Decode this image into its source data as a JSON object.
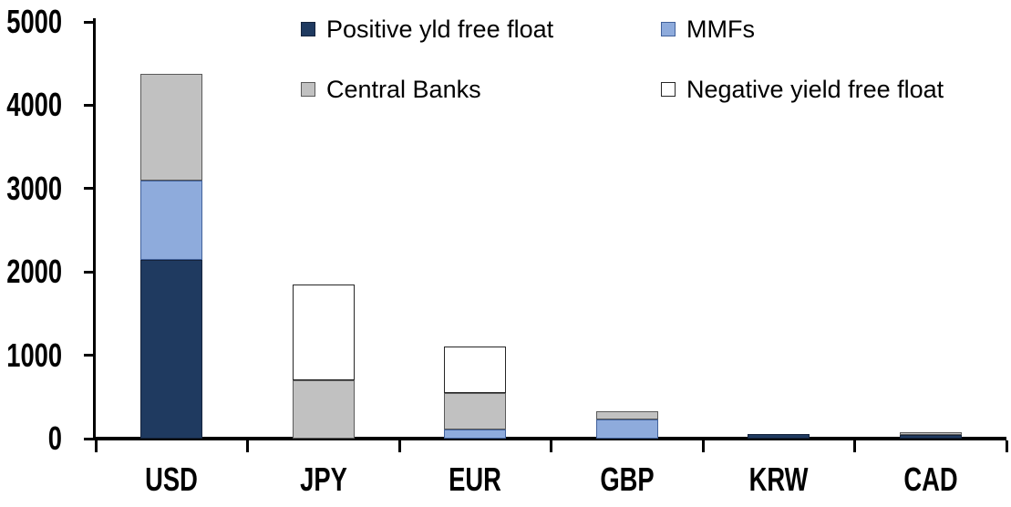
{
  "chart_data": {
    "type": "bar",
    "stacked": true,
    "title": "",
    "xlabel": "",
    "ylabel": "",
    "categories": [
      "USD",
      "JPY",
      "EUR",
      "GBP",
      "KRW",
      "CAD"
    ],
    "series": [
      {
        "name": "Positive yld free float",
        "color": "#1f3a60",
        "border": "#14233c",
        "values": [
          2150,
          0,
          0,
          0,
          50,
          40
        ]
      },
      {
        "name": "MMFs",
        "color": "#8eabdc",
        "border": "#41619b",
        "values": [
          950,
          0,
          110,
          230,
          0,
          0
        ]
      },
      {
        "name": "Central Banks",
        "color": "#c1c1c1",
        "border": "#5a5a5a",
        "values": [
          1280,
          700,
          440,
          100,
          0,
          40
        ]
      },
      {
        "name": "Negative yield free float",
        "color": "#ffffff",
        "border": "#262626",
        "values": [
          0,
          1150,
          560,
          0,
          0,
          0
        ]
      }
    ],
    "ylim": [
      0,
      5000
    ],
    "yticks": [
      0,
      1000,
      2000,
      3000,
      4000,
      5000
    ],
    "grid": false,
    "legend_position": "top"
  },
  "style_colors": {
    "axis": "#000000",
    "text": "#000000",
    "background": "#ffffff"
  }
}
